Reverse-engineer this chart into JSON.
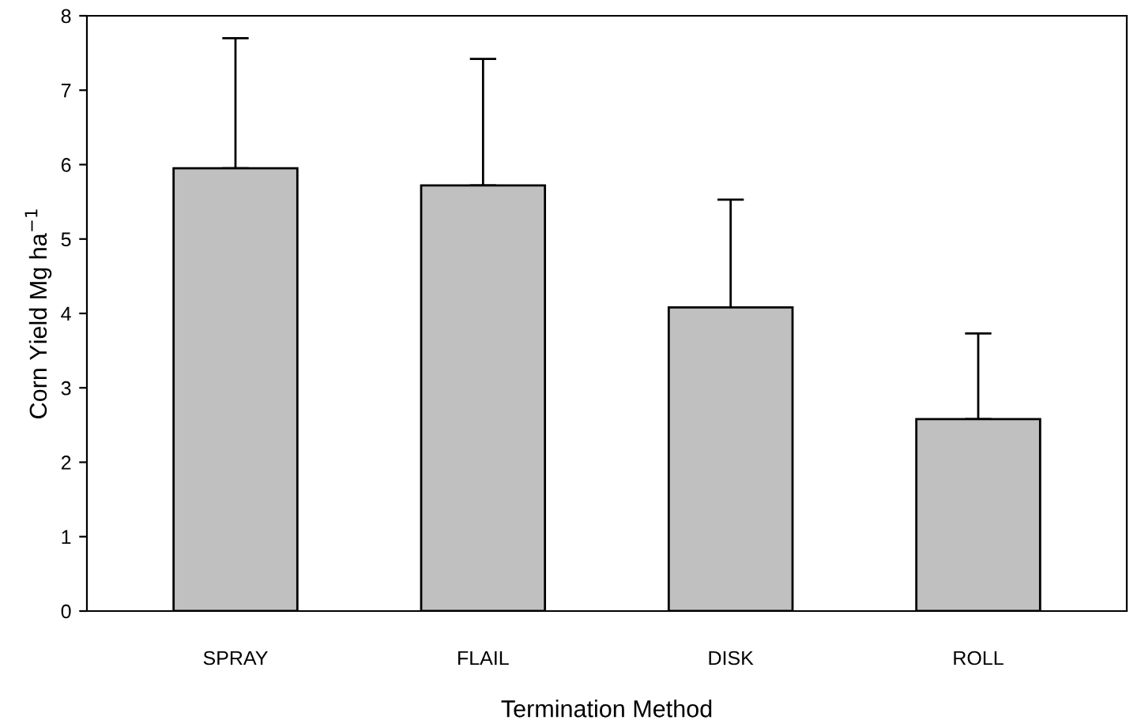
{
  "chart_data": {
    "type": "bar",
    "xlabel": "Termination Method",
    "ylabel": "Corn Yield Mg ha$^{−1}$",
    "categories": [
      "SPRAY",
      "FLAIL",
      "DISK",
      "ROLL"
    ],
    "values": [
      5.95,
      5.72,
      4.08,
      2.58
    ],
    "errors": [
      [
        5.95,
        7.7
      ],
      [
        5.72,
        7.42
      ],
      [
        4.08,
        5.53
      ],
      [
        2.58,
        3.73
      ]
    ],
    "color": "#c0c0c0",
    "ylim": [
      0,
      8
    ],
    "yticks": [
      0,
      1,
      2,
      3,
      4,
      5,
      6,
      7,
      8
    ],
    "grid": false,
    "legend": false
  }
}
